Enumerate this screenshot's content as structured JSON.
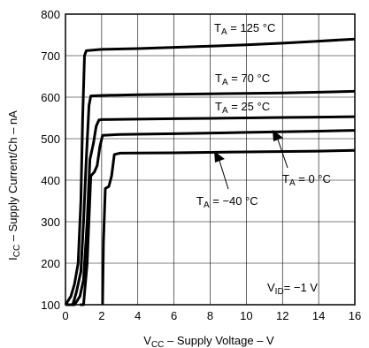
{
  "chart_data": {
    "type": "line",
    "x_range": [
      0,
      16
    ],
    "y_range": [
      100,
      800
    ],
    "x_ticks": [
      0,
      2,
      4,
      6,
      8,
      10,
      12,
      14,
      16
    ],
    "y_ticks": [
      100,
      200,
      300,
      400,
      500,
      600,
      700,
      800
    ],
    "grid": true,
    "xlabel": {
      "main": "V",
      "sub": "CC",
      "rest": " – Supply Voltage – V"
    },
    "ylabel": {
      "main": "I",
      "sub": "CC",
      "rest": " – Supply Current/Ch – nA"
    },
    "series": [
      {
        "name": "TA = 125 °C",
        "points": [
          [
            0.0,
            100
          ],
          [
            0.3,
            120
          ],
          [
            0.5,
            150
          ],
          [
            0.7,
            200
          ],
          [
            0.85,
            350
          ],
          [
            0.95,
            550
          ],
          [
            1.05,
            700
          ],
          [
            1.15,
            712
          ],
          [
            2,
            715
          ],
          [
            4,
            717
          ],
          [
            6,
            720
          ],
          [
            8,
            723
          ],
          [
            10,
            726
          ],
          [
            12,
            730
          ],
          [
            14,
            735
          ],
          [
            16,
            740
          ]
        ]
      },
      {
        "name": "TA = 70 °C",
        "points": [
          [
            0.0,
            100
          ],
          [
            0.4,
            100
          ],
          [
            0.6,
            130
          ],
          [
            0.85,
            180
          ],
          [
            1.0,
            300
          ],
          [
            1.15,
            450
          ],
          [
            1.3,
            580
          ],
          [
            1.4,
            603
          ],
          [
            2,
            604
          ],
          [
            4,
            606
          ],
          [
            6,
            607
          ],
          [
            8,
            608
          ],
          [
            10,
            609
          ],
          [
            12,
            610
          ],
          [
            14,
            612
          ],
          [
            16,
            614
          ]
        ]
      },
      {
        "name": "TA = 25 °C",
        "points": [
          [
            0.0,
            100
          ],
          [
            0.5,
            100
          ],
          [
            0.8,
            120
          ],
          [
            1.0,
            160
          ],
          [
            1.2,
            300
          ],
          [
            1.35,
            450
          ],
          [
            1.55,
            490
          ],
          [
            1.7,
            530
          ],
          [
            1.85,
            545
          ],
          [
            2,
            546
          ],
          [
            4,
            547
          ],
          [
            6,
            548
          ],
          [
            8,
            549
          ],
          [
            10,
            550
          ],
          [
            12,
            551
          ],
          [
            14,
            552
          ],
          [
            16,
            553
          ]
        ]
      },
      {
        "name": "TA = 0 °C",
        "points": [
          [
            0.8,
            100
          ],
          [
            1.0,
            100
          ],
          [
            1.2,
            200
          ],
          [
            1.4,
            410
          ],
          [
            1.6,
            420
          ],
          [
            1.75,
            435
          ],
          [
            1.9,
            480
          ],
          [
            2.05,
            508
          ],
          [
            3,
            510
          ],
          [
            6,
            512
          ],
          [
            10,
            515
          ],
          [
            14,
            518
          ],
          [
            16,
            520
          ]
        ]
      },
      {
        "name": "TA = −40 °C",
        "points": [
          [
            2.05,
            100
          ],
          [
            2.1,
            250
          ],
          [
            2.2,
            380
          ],
          [
            2.4,
            385
          ],
          [
            2.55,
            410
          ],
          [
            2.7,
            462
          ],
          [
            3,
            465
          ],
          [
            6,
            466
          ],
          [
            10,
            468
          ],
          [
            14,
            470
          ],
          [
            16,
            472
          ]
        ]
      }
    ],
    "annotations": [
      {
        "id": "t125",
        "main": "T",
        "sub": "A",
        "rest": " = 125 °C"
      },
      {
        "id": "t70",
        "main": "T",
        "sub": "A",
        "rest": " = 70 °C"
      },
      {
        "id": "t25",
        "main": "T",
        "sub": "A",
        "rest": " = 25 °C"
      },
      {
        "id": "t0",
        "main": "T",
        "sub": "A",
        "rest": " = 0 °C"
      },
      {
        "id": "tm40",
        "main": "T",
        "sub": "A",
        "rest": " = −40 °C"
      },
      {
        "id": "vid",
        "main": "V",
        "sub": "ID",
        "rest": "= −1 V"
      }
    ]
  }
}
